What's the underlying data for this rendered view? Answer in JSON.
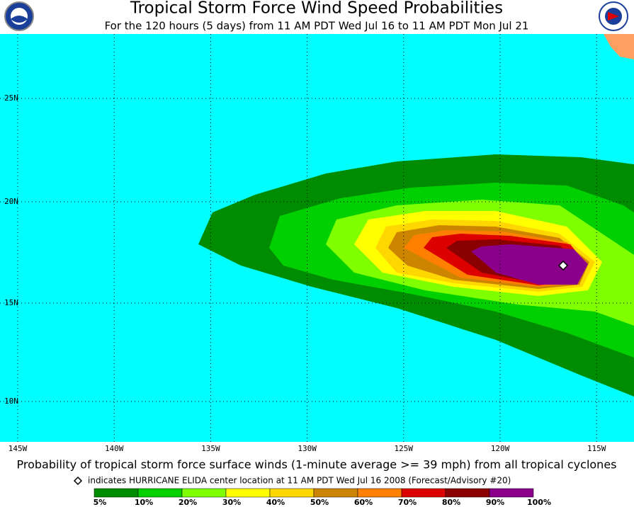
{
  "header": {
    "title": "Tropical Storm Force Wind Speed Probabilities",
    "subtitle": "For the 120 hours (5 days) from 11 AM PDT Wed Jul 16 to 11 AM PDT Mon Jul 21"
  },
  "map": {
    "lat_labels": [
      "25N",
      "20N",
      "15N",
      "10N"
    ],
    "lon_labels": [
      "145W",
      "140W",
      "135W",
      "130W",
      "125W",
      "120W",
      "115W"
    ]
  },
  "caption": "Probability of tropical storm force surface winds (1-minute average >= 39 mph) from all tropical cyclones",
  "note": "indicates HURRICANE ELIDA center location at 11 AM PDT Wed Jul 16 2008 (Forecast/Advisory #20)",
  "legend": {
    "labels": [
      "5%",
      "10%",
      "20%",
      "30%",
      "40%",
      "50%",
      "60%",
      "70%",
      "80%",
      "90%",
      "100%"
    ],
    "colors": [
      "#008c00",
      "#00d000",
      "#80ff00",
      "#ffff00",
      "#ffd700",
      "#cd8500",
      "#ff8000",
      "#dd0000",
      "#8b0000",
      "#8b008b"
    ]
  }
}
